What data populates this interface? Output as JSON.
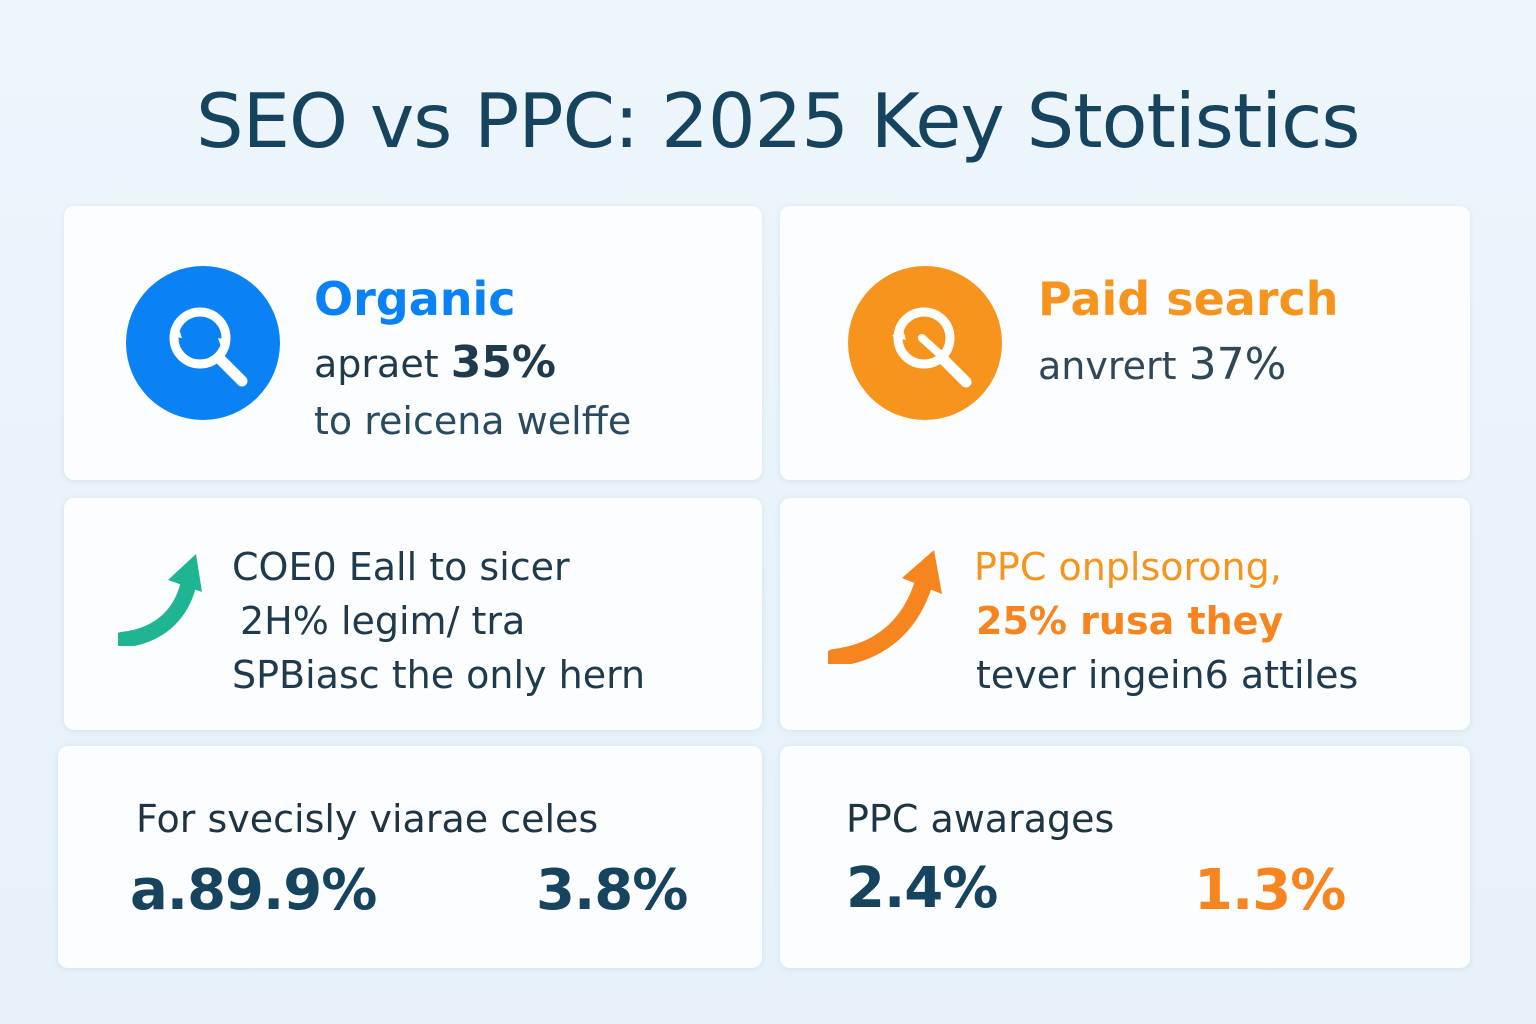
{
  "title": "SEO vs PPC: 2025 Key Stotistics",
  "colors": {
    "organic_blue": "#0a82f3",
    "paid_orange": "#f7941d",
    "teal_arrow": "#20b592",
    "orange_arrow": "#f7851f",
    "navy_text": "#16435d"
  },
  "organic": {
    "icon": "search-refresh-icon",
    "heading": "Organic",
    "line1_prefix": "apraet",
    "line1_value": "35%",
    "line2": "to reicena welffe"
  },
  "paid": {
    "icon": "search-refresh-icon",
    "heading": "Paid search",
    "line1_prefix": "anvrert",
    "line1_value": "37%"
  },
  "seo_stat": {
    "icon": "trend-up-arrow-icon",
    "line1": "COE0 Eall to sicer",
    "line2": "2H% legim/ tra",
    "line3": "SPBiasc the only hern"
  },
  "ppc_stat": {
    "icon": "trend-up-arrow-icon",
    "line1": "PPC onplsorong,",
    "line2": "25% rusa they",
    "line3": "tever ingein6 attiles"
  },
  "seo_averages": {
    "label": "For svecisly viarae celes",
    "value_a": "a.89.9%",
    "value_b": "3.8%"
  },
  "ppc_averages": {
    "label": "PPC awarages",
    "value_a": "2.4%",
    "value_b": "1.3%"
  }
}
